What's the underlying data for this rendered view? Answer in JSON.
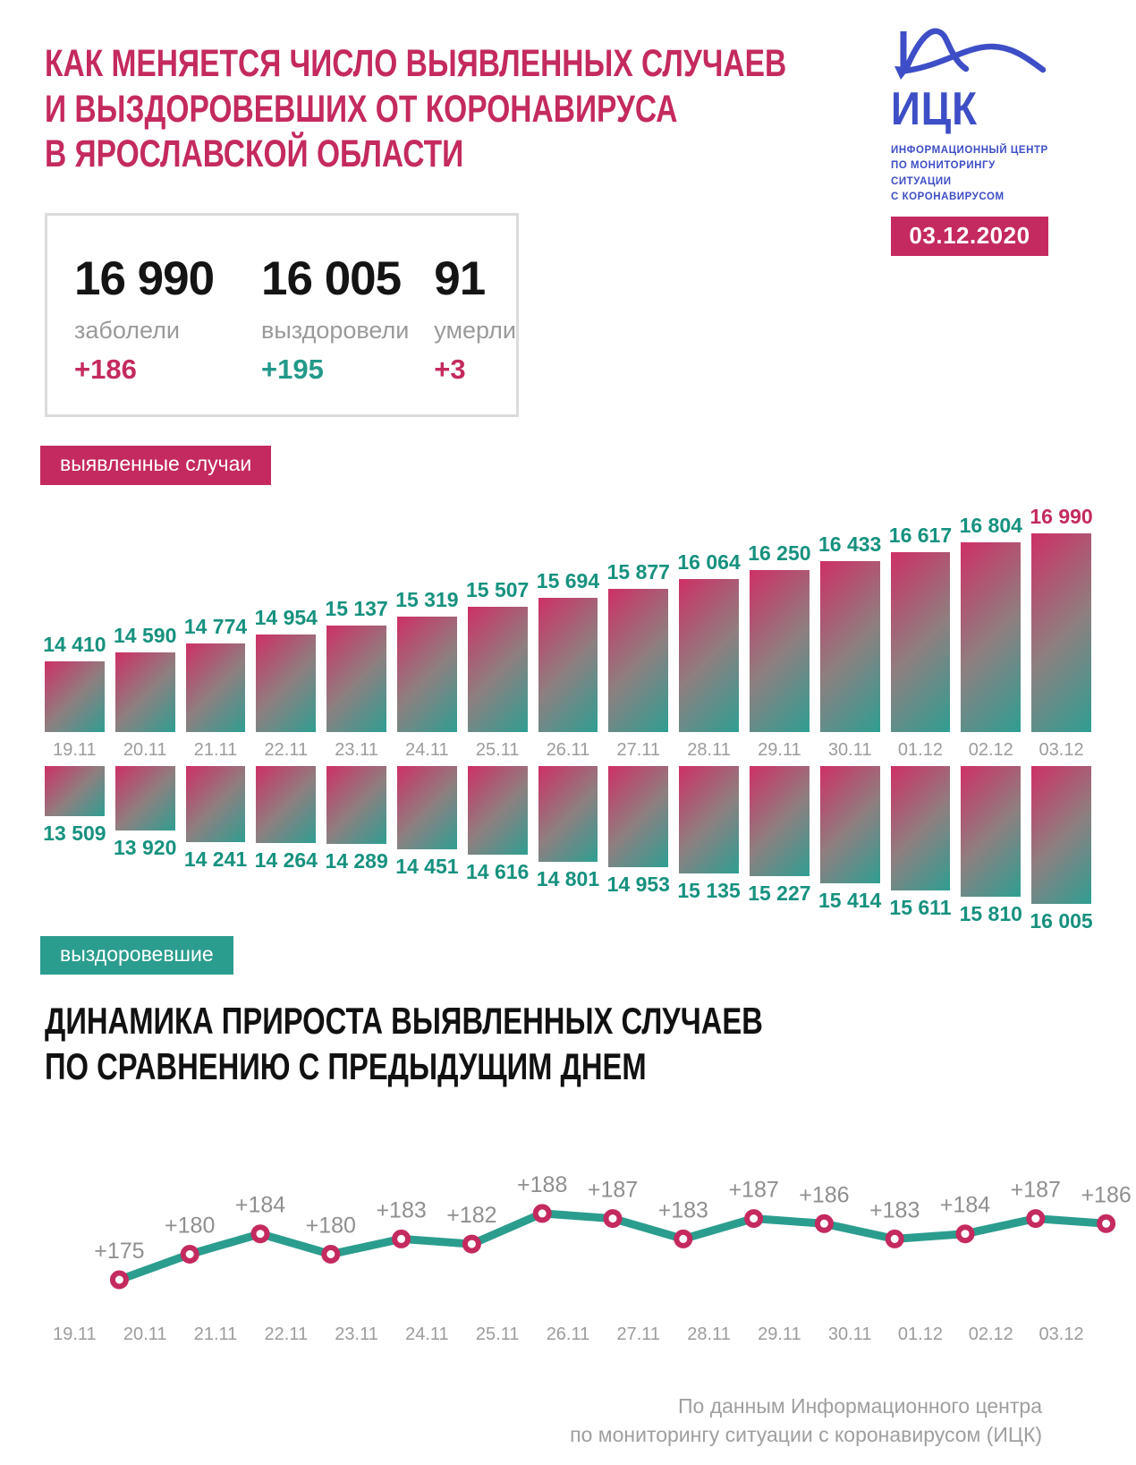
{
  "header": {
    "title_lines": [
      "Как меняется число выявленных случаев",
      "и выздоровевших от коронавируса",
      "в Ярославской области"
    ],
    "logo": {
      "abbr": "ИЦК",
      "subtitle_lines": [
        "ИНФОРМАЦИОННЫЙ ЦЕНТР",
        "ПО МОНИТОРИНГУ СИТУАЦИИ",
        "С КОРОНАВИРУСОМ"
      ],
      "date": "03.12.2020"
    }
  },
  "summary": {
    "cases": {
      "value": "16 990",
      "label": "заболели",
      "delta": "+186"
    },
    "recovered": {
      "value": "16 005",
      "label": "выздоровели",
      "delta": "+195"
    },
    "deaths": {
      "value": "91",
      "label": "умерли",
      "delta": "+3"
    }
  },
  "badges": {
    "detected": "выявленные случаи",
    "recovered": "выздоровевшие"
  },
  "section2": {
    "title_lines": [
      "Динамика прироста выявленных случаев",
      "по сравнению с предыдущим днем"
    ]
  },
  "footer_lines": [
    "По данным Информационного центра",
    "по мониторингу ситуации с коронавирусом (ИЦК)"
  ],
  "colors": {
    "crimson": "#C42A5F",
    "teal": "#2B9D8E",
    "teal_label": "#17917F",
    "logo_blue": "#3D4EC6",
    "gray_text": "#9C9C9C",
    "bar_gradient": [
      "#CE3066",
      "#8E7F80",
      "#2F9E92"
    ]
  },
  "chart_data": [
    {
      "type": "bar",
      "name": "выявленные случаи",
      "orientation": "up",
      "categories": [
        "19.11",
        "20.11",
        "21.11",
        "22.11",
        "23.11",
        "24.11",
        "25.11",
        "26.11",
        "27.11",
        "28.11",
        "29.11",
        "30.11",
        "01.12",
        "02.12",
        "03.12"
      ],
      "values": [
        14410,
        14590,
        14774,
        14954,
        15137,
        15319,
        15507,
        15694,
        15877,
        16064,
        16250,
        16433,
        16617,
        16804,
        16990
      ],
      "labels": [
        "14 410",
        "14 590",
        "14 774",
        "14 954",
        "15 137",
        "15 319",
        "15 507",
        "15 694",
        "15 877",
        "16 064",
        "16 250",
        "16 433",
        "16 617",
        "16 804",
        "16 990"
      ],
      "last_label_accented": true,
      "grid": false,
      "axes_hidden": true
    },
    {
      "type": "bar",
      "name": "выздоровевшие",
      "orientation": "down",
      "categories": [
        "19.11",
        "20.11",
        "21.11",
        "22.11",
        "23.11",
        "24.11",
        "25.11",
        "26.11",
        "27.11",
        "28.11",
        "29.11",
        "30.11",
        "01.12",
        "02.12",
        "03.12"
      ],
      "values": [
        13509,
        13920,
        14241,
        14264,
        14289,
        14451,
        14616,
        14801,
        14953,
        15135,
        15227,
        15414,
        15611,
        15810,
        16005
      ],
      "labels": [
        "13 509",
        "13 920",
        "14 241",
        "14 264",
        "14 289",
        "14 451",
        "14 616",
        "14 801",
        "14 953",
        "15 135",
        "15 227",
        "15 414",
        "15 611",
        "15 810",
        "16 005"
      ],
      "grid": false,
      "axes_hidden": true
    },
    {
      "type": "line",
      "name": "динамика прироста выявленных случаев по сравнению с предыдущим днем",
      "categories": [
        "19.11",
        "20.11",
        "21.11",
        "22.11",
        "23.11",
        "24.11",
        "25.11",
        "26.11",
        "27.11",
        "28.11",
        "29.11",
        "30.11",
        "01.12",
        "02.12",
        "03.12"
      ],
      "values": [
        175,
        180,
        184,
        180,
        183,
        182,
        188,
        187,
        183,
        187,
        186,
        183,
        184,
        187,
        186
      ],
      "labels": [
        "+175",
        "+180",
        "+184",
        "+180",
        "+183",
        "+182",
        "+188",
        "+187",
        "+183",
        "+187",
        "+186",
        "+183",
        "+184",
        "+187",
        "+186"
      ],
      "ylim": [
        170,
        192
      ],
      "grid": false,
      "axes_hidden": true,
      "legend": "none"
    }
  ]
}
